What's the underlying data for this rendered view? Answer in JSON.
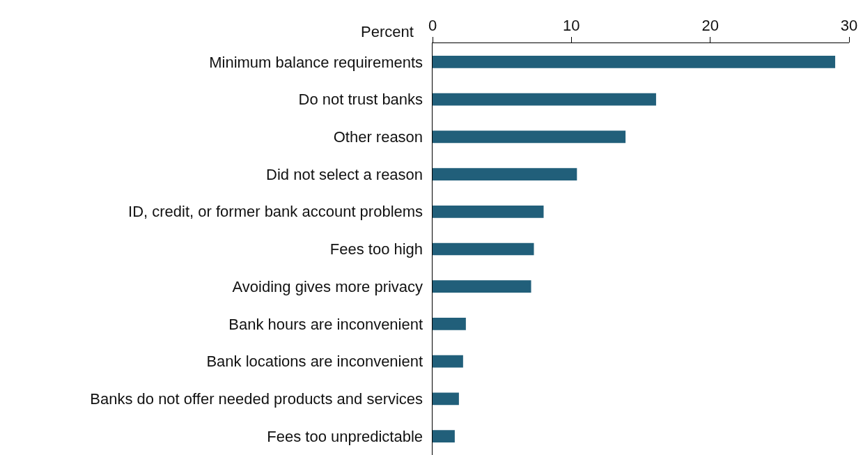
{
  "chart_data": {
    "type": "bar",
    "orientation": "horizontal",
    "xlabel": "Percent",
    "categories": [
      "Minimum balance requirements",
      "Do not trust banks",
      "Other reason",
      "Did not select a reason",
      "ID, credit, or former bank account problems",
      "Fees too high",
      "Avoiding gives more privacy",
      "Bank hours are inconvenient",
      "Bank locations are inconvenient",
      "Banks do not offer needed products and services",
      "Fees too unpredictable"
    ],
    "values": [
      29.0,
      16.1,
      13.9,
      10.4,
      8.0,
      7.3,
      7.1,
      2.4,
      2.2,
      1.9,
      1.6
    ],
    "color": "#215f7a",
    "xlim": [
      0,
      30
    ],
    "xticks": [
      0,
      10,
      20,
      30
    ],
    "grid": false,
    "legend": false
  }
}
